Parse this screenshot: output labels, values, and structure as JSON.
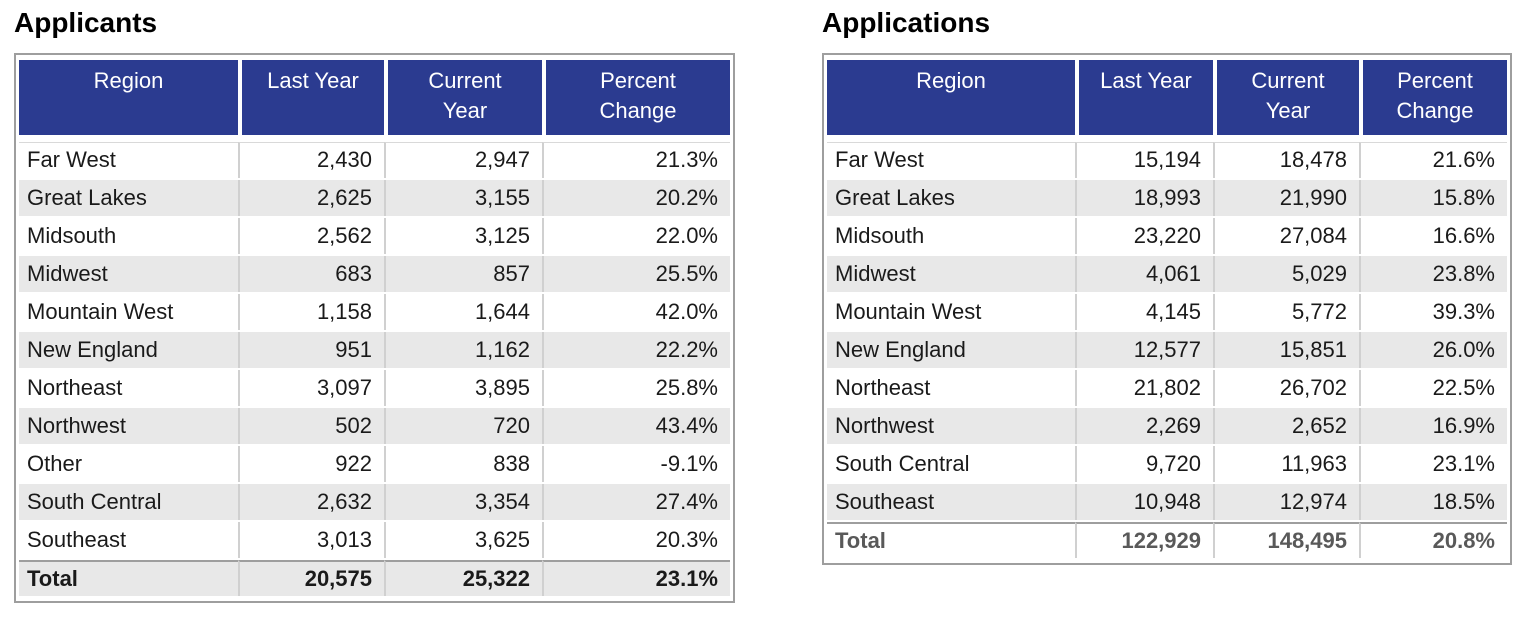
{
  "colors": {
    "header_bg": "#2b3b90",
    "header_text": "#ffffff",
    "table_border": "#9e9e9e",
    "row_stripe": "#e8e8e8",
    "column_divider": "#d0d0d0",
    "body_text": "#1a1a1a",
    "total_text_applicants": "#1a1a1a",
    "total_text_applications": "#595959"
  },
  "chart_data": [
    {
      "type": "table",
      "title": "Applicants",
      "columns": [
        "Region",
        "Last Year",
        "Current\nYear",
        "Percent\nChange"
      ],
      "rows": [
        [
          "Far West",
          "2,430",
          "2,947",
          "21.3%"
        ],
        [
          "Great Lakes",
          "2,625",
          "3,155",
          "20.2%"
        ],
        [
          "Midsouth",
          "2,562",
          "3,125",
          "22.0%"
        ],
        [
          "Midwest",
          "683",
          "857",
          "25.5%"
        ],
        [
          "Mountain West",
          "1,158",
          "1,644",
          "42.0%"
        ],
        [
          "New England",
          "951",
          "1,162",
          "22.2%"
        ],
        [
          "Northeast",
          "3,097",
          "3,895",
          "25.8%"
        ],
        [
          "Northwest",
          "502",
          "720",
          "43.4%"
        ],
        [
          "Other",
          "922",
          "838",
          "-9.1%"
        ],
        [
          "South Central",
          "2,632",
          "3,354",
          "27.4%"
        ],
        [
          "Southeast",
          "3,013",
          "3,625",
          "20.3%"
        ]
      ],
      "total_row": [
        "Total",
        "20,575",
        "25,322",
        "23.1%"
      ]
    },
    {
      "type": "table",
      "title": "Applications",
      "columns": [
        "Region",
        "Last Year",
        "Current\nYear",
        "Percent\nChange"
      ],
      "rows": [
        [
          "Far West",
          "15,194",
          "18,478",
          "21.6%"
        ],
        [
          "Great Lakes",
          "18,993",
          "21,990",
          "15.8%"
        ],
        [
          "Midsouth",
          "23,220",
          "27,084",
          "16.6%"
        ],
        [
          "Midwest",
          "4,061",
          "5,029",
          "23.8%"
        ],
        [
          "Mountain West",
          "4,145",
          "5,772",
          "39.3%"
        ],
        [
          "New England",
          "12,577",
          "15,851",
          "26.0%"
        ],
        [
          "Northeast",
          "21,802",
          "26,702",
          "22.5%"
        ],
        [
          "Northwest",
          "2,269",
          "2,652",
          "16.9%"
        ],
        [
          "South Central",
          "9,720",
          "11,963",
          "23.1%"
        ],
        [
          "Southeast",
          "10,948",
          "12,974",
          "18.5%"
        ]
      ],
      "total_row": [
        "Total",
        "122,929",
        "148,495",
        "20.8%"
      ]
    }
  ]
}
